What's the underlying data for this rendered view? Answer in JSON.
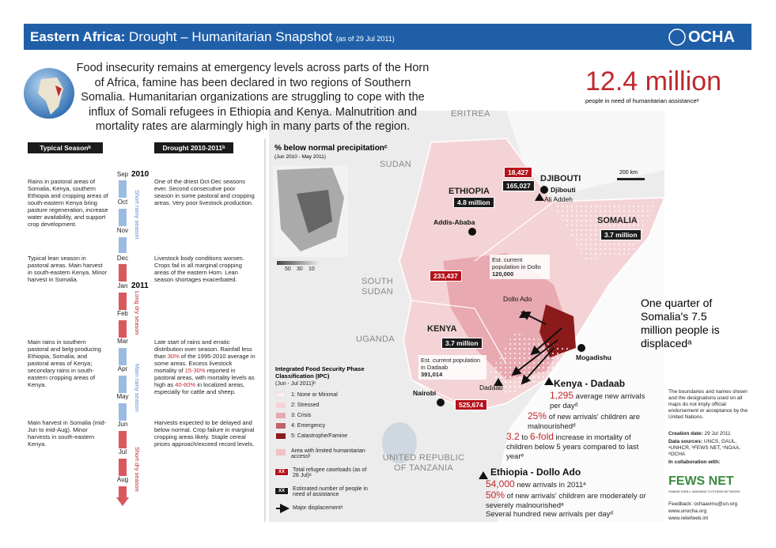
{
  "header": {
    "title_region": "Eastern Africa:",
    "title": "Drought – Humanitarian Snapshot",
    "date": "(as of 29 Jul 2011)",
    "logo": "OCHA"
  },
  "intro": "Food insecurity remains at emergency levels across parts of the Horn of Africa, famine has been declared in two regions of Southern Somalia. Humanitarian organizations are struggling to cope with the influx of Somali refugees in Ethiopia and Kenya. Malnutrition and mortality rates are alarmingly high in many parts of the region.",
  "headline": {
    "value": "12.4 million",
    "caption": "people in need of humanitarian assistanceᵈ"
  },
  "timeline": {
    "typical_header": "Typical Seasonᵇ",
    "drought_header": "Drought 2010-2011ᵇ",
    "years": [
      "2010",
      "2011"
    ],
    "months": [
      "Sep",
      "Oct",
      "Nov",
      "Dec",
      "Jan",
      "Feb",
      "Mar",
      "Apr",
      "May",
      "Jun",
      "Jul",
      "Aug"
    ],
    "seasons": [
      "Short rainy season",
      "Long dry season",
      "Main rainy season",
      "Short dry season"
    ],
    "typical": [
      "Rains in pastoral areas of Somalia, Kenya, southern Ethiopia and cropping areas of south-eastern Kenya bring pasture regeneration, increase water availability, and support crop development.",
      "Typical lean season in pastoral areas. Main harvest in south-eastern Kenya. Minor harvest in Somalia.",
      "Main rains in southern pastoral and belg-producing Ethiopia, Somalia, and pastoral areas of Kenya; secondary rains in south-eastern cropping areas of Kenya.",
      "Main harvest in Somalia (mid-Jun to mid-Aug). Minor harvests in south-eastern Kenya."
    ],
    "drought": [
      [
        "One of the driest Oct-Dec seasons ever. Second consecutive poor season in some pastoral and cropping areas. Very poor livestock production."
      ],
      [
        "Livestock body conditions worsen. Crops fail in all marginal cropping areas of the eastern Horn. Lean season shortages exacerbated."
      ],
      [
        "Late start of rains and erratic distribution over season. Rainfall less than ",
        "30%",
        " of the 1995-2010 average in some areas. Excess livestock mortality of ",
        "15-30%",
        " reported in pastoral areas, with mortality levels as high as ",
        "40-60%",
        " in localized areas, especially for cattle and sheep."
      ],
      [
        "Harvests expected to be delayed and below normal. Crop failure in marginal cropping areas likely. Staple cereal prices approach/exceed record levels."
      ]
    ]
  },
  "map": {
    "countries": {
      "eritrea": "ERITREA",
      "sudan": "SUDAN",
      "ethiopia": "ETHIOPIA",
      "djibouti": "DJIBOUTI",
      "somalia": "SOMALIA",
      "south_sudan": "SOUTH SUDAN",
      "uganda": "UGANDA",
      "kenya": "KENYA",
      "tanzania": "UNITED REPUBLIC OF TANZANIA"
    },
    "cities": {
      "djibouti": "Djibouti",
      "ali_addeh": "Ali Addeh",
      "addis": "Addis-Ababa",
      "dollo": "Dollo Ado",
      "mogadishu": "Mogadishu",
      "nairobi": "Nairobi",
      "dadaab": "Dadaab"
    },
    "figures": {
      "djibouti_refugees": "18,427",
      "ethiopia_refugees": "165,027",
      "ethiopia_need": "4.8 million",
      "somalia_need": "3.7 million",
      "kenya_need": "3.7 million",
      "ethiopia_refugees_west": "233,437",
      "kenya_refugees": "525,674"
    },
    "dollo_box": {
      "label": "Est. current population in Dollo",
      "value": "120,000"
    },
    "dadaab_box": {
      "label": "Est. current population in Dadaab",
      "value": "391,014"
    },
    "scale": "200 km",
    "inset": {
      "title": "% below normal precipitationᶜ",
      "period": "(Jun 2010 - May 2011)",
      "legend": [
        "50",
        "30",
        "10"
      ]
    }
  },
  "legend": {
    "title": "Integrated Food Security Phase Classification (IPC)",
    "period": "(Jun - Jul 2011)ᵇ",
    "ipc": [
      "1: None or Minimal",
      "2: Stressed",
      "3: Crisis",
      "4: Emergency",
      "5: Catastrophe/Famine"
    ],
    "access": "Area with limited humanitarian accessᵇ",
    "box_text": "XX",
    "refugee_label": "Total refugee caseloads (as of 28 Jul)ᵃ",
    "need_label": "Estimated number of people in need of assistance",
    "displacement": "Major displacementᵃ"
  },
  "callout": "One quarter of Somalia's 7.5 million people is displacedᵃ",
  "kenya": {
    "title": "Kenya - Dadaab",
    "lines": [
      [
        "1,295",
        " average new arrivals per dayᵈ"
      ],
      [
        "25%",
        " of new arrivals' children are malnourishedᵈ"
      ],
      [
        "3.2",
        " to ",
        "6-fold",
        " increase in mortality of children below 5 years compared to last yearᵉ"
      ]
    ]
  },
  "ethiopia": {
    "title": "Ethiopia - Dollo Ado",
    "lines": [
      [
        "54,000",
        " new arrivals in 2011ᵃ"
      ],
      [
        "50%",
        " of new arrivals' children are moderately or severely malnourishedᵃ"
      ],
      [
        "Several hundred new arrivals per dayᵈ"
      ]
    ]
  },
  "notes": {
    "disclaimer": "The boundaries and names shown and the designations used on all maps do not imply official endorsement or acceptance by the United Nations.",
    "creation_label": "Creation date:",
    "creation_value": "29 Jul 2011",
    "sources_label": "Data sources:",
    "sources_value": "UNCS, GAUL, ᵃUNHCR, ᵇFEWS NET, ᶜNOAA, ᵈOCHA",
    "collab": "In collaboration with:",
    "fews": "FEWS NET",
    "fews_sub": "FAMINE EARLY WARNING SYSTEMS NETWORK",
    "feedback": "Feedback: ochaavmu@un.org",
    "url1": "www.unocha.org",
    "url2": "www.reliefweb.int"
  }
}
